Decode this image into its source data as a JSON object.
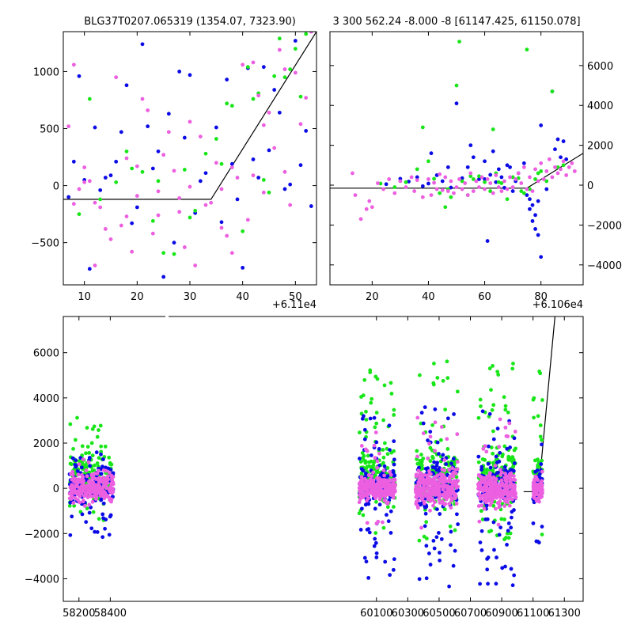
{
  "colors": {
    "blue": "#0b0be6",
    "green": "#19e619",
    "pink": "#ec5fe0",
    "model": "#000000",
    "axis": "#000000"
  },
  "chart_data": [
    {
      "id": "top-left",
      "type": "scatter",
      "title": "BLG37T0207.065319 (1354.07, 7323.90)",
      "x_offset_label": "+6.11e4",
      "xlim": [
        6,
        54
      ],
      "ylim": [
        -870,
        1350
      ],
      "xticks": [
        10,
        20,
        30,
        40,
        50
      ],
      "yticks": [
        -500,
        0,
        500,
        1000
      ],
      "ytick_labels": [
        "−500",
        "0",
        "500",
        "1000"
      ],
      "model_line": [
        [
          6,
          -120
        ],
        [
          34,
          -120
        ],
        [
          54,
          1350
        ]
      ],
      "series": [
        {
          "name": "blue",
          "color": "blue",
          "x": [
            7,
            8,
            9,
            10,
            11,
            12,
            14,
            17,
            18,
            20,
            22,
            24,
            26,
            28,
            29,
            30,
            31,
            33,
            35,
            37,
            38,
            39,
            40,
            41,
            43,
            44,
            45,
            47,
            48,
            50,
            51,
            53,
            13,
            16,
            21,
            27,
            32,
            36,
            42,
            46,
            49,
            52,
            15,
            19,
            23,
            25
          ],
          "y": [
            -100,
            210,
            960,
            50,
            -730,
            510,
            70,
            470,
            880,
            -190,
            520,
            300,
            630,
            1000,
            420,
            970,
            -240,
            110,
            510,
            930,
            190,
            -120,
            -720,
            1030,
            70,
            1040,
            310,
            640,
            -30,
            1270,
            180,
            -180,
            -40,
            210,
            1240,
            -500,
            40,
            -320,
            230,
            840,
            10,
            480,
            90,
            -330,
            150,
            -800
          ]
        },
        {
          "name": "green",
          "x": [
            9,
            11,
            13,
            16,
            18,
            21,
            23,
            25,
            27,
            29,
            31,
            33,
            35,
            37,
            38,
            40,
            41,
            42,
            43,
            44,
            46,
            47,
            48,
            49,
            50,
            51,
            52,
            19,
            24,
            30,
            36,
            45
          ],
          "color": "green",
          "y": [
            -250,
            760,
            -120,
            30,
            300,
            120,
            -310,
            -590,
            -600,
            140,
            -220,
            280,
            410,
            720,
            700,
            -400,
            1040,
            760,
            810,
            50,
            960,
            1290,
            950,
            1020,
            1200,
            780,
            1330,
            150,
            40,
            -280,
            190,
            -60
          ]
        },
        {
          "name": "pink",
          "color": "pink",
          "x": [
            7,
            8,
            8,
            9,
            10,
            11,
            12,
            13,
            14,
            15,
            16,
            17,
            18,
            19,
            20,
            21,
            22,
            23,
            24,
            25,
            26,
            27,
            28,
            29,
            30,
            31,
            32,
            33,
            34,
            35,
            36,
            37,
            38,
            39,
            40,
            41,
            42,
            43,
            44,
            45,
            46,
            47,
            48,
            49,
            50,
            51,
            52,
            53,
            12,
            18,
            24,
            30,
            36,
            42,
            48,
            10,
            20,
            28,
            38,
            44
          ],
          "y": [
            520,
            1060,
            -160,
            -30,
            160,
            40,
            -700,
            -190,
            -380,
            -470,
            950,
            -350,
            -270,
            -580,
            170,
            760,
            660,
            -420,
            -50,
            270,
            470,
            130,
            -110,
            -540,
            560,
            -700,
            430,
            -170,
            -150,
            200,
            -30,
            -440,
            -590,
            70,
            1060,
            -300,
            1080,
            790,
            530,
            640,
            330,
            1190,
            120,
            -170,
            990,
            540,
            770,
            1350,
            -150,
            240,
            -260,
            -10,
            -370,
            90,
            1020,
            30,
            -90,
            -230,
            160,
            -60
          ]
        }
      ]
    },
    {
      "id": "top-right",
      "type": "scatter",
      "title": "3 300 562.24 -8.000 -8 [61147.425, 61150.078]",
      "x_offset_label": "+6.106e4",
      "xlim": [
        5,
        95
      ],
      "ylim": [
        -5000,
        7700
      ],
      "xticks": [
        20,
        40,
        60,
        80
      ],
      "yticks": [
        -4000,
        -2000,
        0,
        2000,
        4000,
        6000
      ],
      "ytick_labels": [
        "−4000",
        "−2000",
        "0",
        "2000",
        "4000",
        "6000"
      ],
      "model_line": [
        [
          5,
          -150
        ],
        [
          75,
          -150
        ],
        [
          95,
          1600
        ]
      ],
      "series": [
        {
          "name": "blue",
          "color": "blue",
          "x": [
            25,
            30,
            33,
            36,
            38,
            40,
            41,
            43,
            45,
            47,
            48,
            50,
            52,
            54,
            55,
            56,
            58,
            60,
            61,
            62,
            63,
            64,
            65,
            66,
            67,
            68,
            69,
            70,
            71,
            72,
            74,
            75,
            76,
            77,
            78,
            79,
            80,
            82,
            84,
            85,
            86,
            87,
            88,
            89,
            60,
            76,
            77,
            78,
            79,
            80
          ],
          "y": [
            50,
            320,
            180,
            400,
            -50,
            80,
            1600,
            500,
            200,
            900,
            -120,
            4100,
            350,
            900,
            2000,
            1400,
            300,
            1200,
            -2800,
            520,
            1700,
            150,
            800,
            400,
            -130,
            1000,
            900,
            -300,
            200,
            600,
            1100,
            -500,
            -700,
            -1000,
            -1500,
            -800,
            3000,
            -200,
            4700,
            1800,
            2300,
            1400,
            2200,
            1300,
            300,
            -1200,
            -1800,
            -2200,
            -2500,
            -3600
          ]
        },
        {
          "name": "green",
          "color": "green",
          "x": [
            23,
            28,
            32,
            36,
            38,
            42,
            44,
            46,
            48,
            50,
            51,
            52,
            54,
            56,
            58,
            60,
            62,
            63,
            64,
            66,
            68,
            70,
            72,
            74,
            75,
            76,
            78,
            80,
            82,
            84,
            86,
            88,
            40,
            47,
            55,
            65,
            73,
            79
          ],
          "y": [
            80,
            -100,
            150,
            800,
            2900,
            320,
            -400,
            -1100,
            -600,
            5000,
            7200,
            200,
            -500,
            300,
            450,
            150,
            -300,
            2800,
            600,
            100,
            -700,
            400,
            350,
            -400,
            6800,
            -200,
            300,
            700,
            200,
            4700,
            900,
            1000,
            1200,
            -200,
            450,
            150,
            -300,
            600
          ]
        },
        {
          "name": "pink",
          "color": "pink",
          "x": [
            13,
            14,
            16,
            18,
            19,
            20,
            22,
            24,
            26,
            28,
            30,
            32,
            34,
            35,
            36,
            38,
            40,
            41,
            42,
            43,
            44,
            45,
            46,
            47,
            48,
            49,
            50,
            51,
            52,
            53,
            54,
            55,
            56,
            57,
            58,
            59,
            60,
            61,
            62,
            63,
            64,
            65,
            66,
            67,
            68,
            69,
            70,
            71,
            72,
            73,
            74,
            75,
            76,
            77,
            78,
            79,
            80,
            81,
            82,
            83,
            84,
            85,
            86,
            87,
            88,
            89,
            90,
            91,
            92
          ],
          "y": [
            600,
            -500,
            -1700,
            -1200,
            -800,
            -1100,
            100,
            -200,
            300,
            -400,
            200,
            -100,
            400,
            -300,
            250,
            -600,
            300,
            -500,
            120,
            -200,
            550,
            -250,
            400,
            -300,
            200,
            -400,
            -100,
            300,
            -200,
            100,
            -500,
            600,
            -300,
            200,
            -100,
            400,
            -200,
            300,
            100,
            -400,
            500,
            -100,
            -300,
            200,
            -200,
            400,
            -100,
            300,
            600,
            100,
            900,
            -200,
            400,
            -300,
            800,
            200,
            1100,
            300,
            700,
            1300,
            400,
            900,
            600,
            800,
            1200,
            500,
            900,
            1100,
            700
          ]
        }
      ]
    },
    {
      "id": "bottom",
      "type": "scatter",
      "title": "",
      "xlim": [
        58100,
        61420
      ],
      "ylim": [
        -5000,
        7600
      ],
      "xticks": [
        58200,
        58400,
        60100,
        60300,
        60500,
        60700,
        60900,
        61100,
        61300
      ],
      "yticks": [
        -4000,
        -2000,
        0,
        2000,
        4000,
        6000
      ],
      "ytick_labels": [
        "−4000",
        "−2000",
        "0",
        "2000",
        "4000",
        "6000"
      ],
      "model_line": [
        [
          61040,
          -150
        ],
        [
          61135,
          -150
        ],
        [
          61240,
          7600
        ]
      ],
      "clusters": [
        {
          "x": [
            58140,
            58420
          ],
          "n": 140,
          "core_sd": 500,
          "blue_spread": 2500,
          "green_spread": 4300
        },
        {
          "x": [
            59990,
            60220
          ],
          "n": 170,
          "core_sd": 450,
          "blue_spread": 4600,
          "green_spread": 6800
        },
        {
          "x": [
            60350,
            60620
          ],
          "n": 170,
          "core_sd": 550,
          "blue_spread": 5000,
          "green_spread": 7300
        },
        {
          "x": [
            60750,
            60990
          ],
          "n": 170,
          "core_sd": 550,
          "blue_spread": 4900,
          "green_spread": 7300
        },
        {
          "x": [
            61100,
            61160
          ],
          "n": 50,
          "core_sd": 400,
          "blue_spread": 2800,
          "green_spread": 7200
        }
      ]
    }
  ]
}
